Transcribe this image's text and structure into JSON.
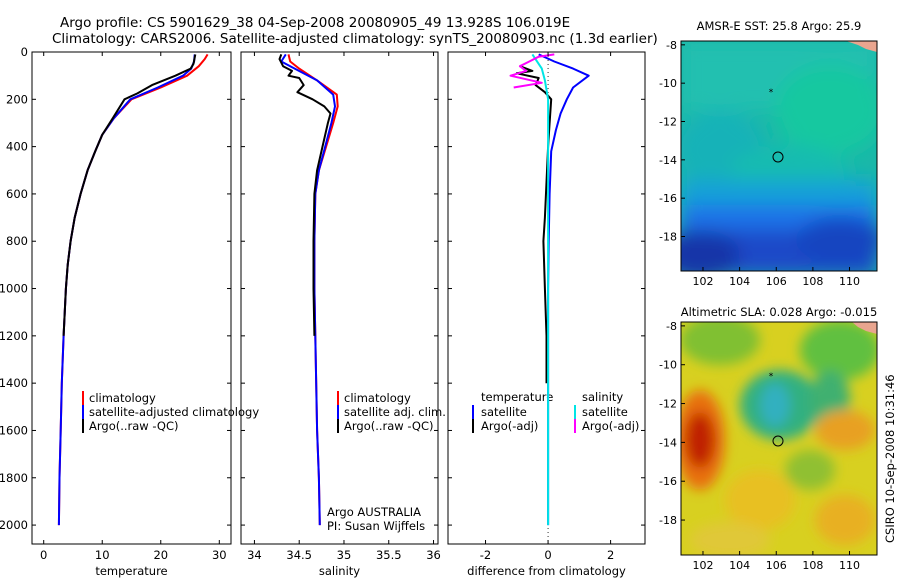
{
  "header": {
    "line1": "Argo profile: CS 5901629_38 04-Sep-2008 20080905_49 13.928S 106.019E",
    "line2": "Climatology: CARS2006. Satellite-adjusted climatology: synTS_20080903.nc (1.3d earlier)"
  },
  "credit": "CSIRO 10-Sep-2008 10:31:46",
  "chart_data": [
    {
      "type": "line",
      "panel": "temperature",
      "xlabel": "temperature",
      "ylabel": "",
      "xlim": [
        -2,
        32
      ],
      "ylim": [
        2080,
        0
      ],
      "xticks": [
        0,
        10,
        20,
        30
      ],
      "yticks": [
        0,
        200,
        400,
        600,
        800,
        1000,
        1200,
        1400,
        1600,
        1800,
        2000
      ],
      "legend": {
        "placement": "lower-right",
        "entries": [
          "climatology",
          "satellite-adjusted climatology",
          "Argo(..raw -QC)"
        ]
      },
      "series": [
        {
          "name": "climatology",
          "color": "#ff0000",
          "points": [
            [
              28,
              10
            ],
            [
              27.5,
              30
            ],
            [
              26.5,
              60
            ],
            [
              24.5,
              100
            ],
            [
              20,
              150
            ],
            [
              15,
              200
            ],
            [
              12,
              280
            ],
            [
              10,
              350
            ],
            [
              8.8,
              420
            ],
            [
              7.5,
              500
            ],
            [
              6.3,
              600
            ],
            [
              5.3,
              700
            ],
            [
              4.6,
              800
            ],
            [
              4.1,
              900
            ],
            [
              3.8,
              1000
            ],
            [
              3.4,
              1200
            ],
            [
              3.1,
              1400
            ],
            [
              2.9,
              1600
            ],
            [
              2.7,
              1800
            ],
            [
              2.6,
              2000
            ]
          ]
        },
        {
          "name": "satellite-adjusted climatology",
          "color": "#0000ff",
          "points": [
            [
              25.8,
              10
            ],
            [
              25.7,
              40
            ],
            [
              25.2,
              70
            ],
            [
              23.8,
              100
            ],
            [
              19.5,
              150
            ],
            [
              14.8,
              200
            ],
            [
              12,
              280
            ],
            [
              10,
              350
            ],
            [
              8.8,
              420
            ],
            [
              7.5,
              500
            ],
            [
              6.3,
              600
            ],
            [
              5.3,
              700
            ],
            [
              4.6,
              800
            ],
            [
              4.1,
              900
            ],
            [
              3.8,
              1000
            ],
            [
              3.4,
              1200
            ],
            [
              3.1,
              1400
            ],
            [
              2.9,
              1600
            ],
            [
              2.7,
              1800
            ],
            [
              2.6,
              2000
            ]
          ]
        },
        {
          "name": "Argo(..raw -QC)",
          "color": "#000000",
          "points": [
            [
              25.9,
              10
            ],
            [
              25.6,
              50
            ],
            [
              25.1,
              70
            ],
            [
              22.5,
              100
            ],
            [
              18.5,
              140
            ],
            [
              16,
              175
            ],
            [
              13.8,
              200
            ],
            [
              11.8,
              280
            ],
            [
              10,
              350
            ],
            [
              8.8,
              420
            ],
            [
              7.5,
              500
            ],
            [
              6.3,
              600
            ],
            [
              5.3,
              700
            ],
            [
              4.6,
              800
            ],
            [
              4.1,
              900
            ],
            [
              3.8,
              1000
            ],
            [
              3.4,
              1200
            ]
          ]
        }
      ]
    },
    {
      "type": "line",
      "panel": "salinity",
      "xlabel": "salinity",
      "xlim": [
        33.85,
        36.05
      ],
      "ylim": [
        2080,
        0
      ],
      "xticks": [
        34,
        34.5,
        35,
        35.5,
        36
      ],
      "legend": {
        "placement": "lower-right",
        "entries": [
          "climatology",
          "satellite adj. clim.",
          "Argo(..raw -QC)"
        ]
      },
      "annotations": [
        "Argo AUSTRALIA",
        "PI: Susan Wijffels"
      ],
      "series": [
        {
          "name": "climatology",
          "color": "#ff0000",
          "points": [
            [
              34.38,
              10
            ],
            [
              34.4,
              40
            ],
            [
              34.5,
              70
            ],
            [
              34.7,
              120
            ],
            [
              34.92,
              180
            ],
            [
              34.93,
              230
            ],
            [
              34.88,
              300
            ],
            [
              34.8,
              400
            ],
            [
              34.72,
              500
            ],
            [
              34.68,
              600
            ],
            [
              34.67,
              800
            ],
            [
              34.67,
              1000
            ],
            [
              34.68,
              1200
            ],
            [
              34.69,
              1400
            ],
            [
              34.7,
              1600
            ],
            [
              34.72,
              1800
            ],
            [
              34.73,
              2000
            ]
          ]
        },
        {
          "name": "satellite adj. clim.",
          "color": "#0000ff",
          "points": [
            [
              34.35,
              10
            ],
            [
              34.3,
              40
            ],
            [
              34.45,
              70
            ],
            [
              34.7,
              120
            ],
            [
              34.88,
              180
            ],
            [
              34.9,
              230
            ],
            [
              34.86,
              300
            ],
            [
              34.79,
              400
            ],
            [
              34.72,
              500
            ],
            [
              34.68,
              600
            ],
            [
              34.67,
              800
            ],
            [
              34.67,
              1000
            ],
            [
              34.68,
              1200
            ],
            [
              34.69,
              1400
            ],
            [
              34.7,
              1600
            ],
            [
              34.72,
              1800
            ],
            [
              34.73,
              2000
            ]
          ]
        },
        {
          "name": "Argo(..raw -QC)",
          "color": "#000000",
          "points": [
            [
              34.3,
              10
            ],
            [
              34.28,
              30
            ],
            [
              34.32,
              60
            ],
            [
              34.42,
              80
            ],
            [
              34.38,
              100
            ],
            [
              34.5,
              110
            ],
            [
              34.55,
              140
            ],
            [
              34.48,
              170
            ],
            [
              34.65,
              200
            ],
            [
              34.78,
              230
            ],
            [
              34.85,
              260
            ],
            [
              34.82,
              300
            ],
            [
              34.76,
              400
            ],
            [
              34.7,
              500
            ],
            [
              34.67,
              600
            ],
            [
              34.66,
              800
            ],
            [
              34.66,
              1000
            ],
            [
              34.67,
              1200
            ]
          ]
        }
      ]
    },
    {
      "type": "line",
      "panel": "difference",
      "xlabel": "difference from climatology",
      "xlim": [
        -3.2,
        3.1
      ],
      "ylim": [
        2080,
        0
      ],
      "xticks": [
        -2,
        0,
        2
      ],
      "legend": {
        "placement": "lower-right",
        "entries": [
          "temperature",
          "satellite",
          "Argo(-adj)",
          "salinity",
          "satellite",
          "Argo(-adj)"
        ]
      },
      "series": [
        {
          "name": "temperature satellite",
          "color": "#0000ff",
          "points": [
            [
              -0.3,
              10
            ],
            [
              0.2,
              40
            ],
            [
              0.8,
              70
            ],
            [
              1.3,
              100
            ],
            [
              0.8,
              150
            ],
            [
              0.6,
              200
            ],
            [
              0.4,
              260
            ],
            [
              0.25,
              330
            ],
            [
              0.1,
              420
            ],
            [
              0.05,
              600
            ],
            [
              0.02,
              800
            ],
            [
              0,
              1000
            ],
            [
              0,
              1200
            ],
            [
              0,
              1600
            ],
            [
              0,
              2000
            ]
          ]
        },
        {
          "name": "temperature Argo(-adj)",
          "color": "#000000",
          "points": [
            [
              -0.9,
              60
            ],
            [
              -0.5,
              80
            ],
            [
              -1.0,
              90
            ],
            [
              -0.3,
              110
            ],
            [
              -0.4,
              140
            ],
            [
              -0.1,
              170
            ],
            [
              0.1,
              200
            ],
            [
              0.05,
              300
            ],
            [
              0,
              400
            ],
            [
              -0.1,
              700
            ],
            [
              -0.15,
              800
            ],
            [
              -0.1,
              1000
            ],
            [
              -0.05,
              1200
            ],
            [
              -0.05,
              1400
            ]
          ]
        },
        {
          "name": "salinity satellite",
          "color": "#00e5e5",
          "points": [
            [
              -0.5,
              10
            ],
            [
              -0.2,
              70
            ],
            [
              -0.1,
              120
            ],
            [
              0,
              200
            ],
            [
              0,
              400
            ],
            [
              0,
              800
            ],
            [
              0,
              1200
            ],
            [
              0,
              1600
            ],
            [
              0,
              2000
            ]
          ]
        },
        {
          "name": "salinity Argo(-adj)",
          "color": "#ff00ff",
          "points": [
            [
              -1.1,
              150
            ],
            [
              -0.2,
              130
            ],
            [
              -1.2,
              100
            ],
            [
              -0.7,
              80
            ],
            [
              -0.9,
              60
            ],
            [
              -0.6,
              40
            ],
            [
              -0.3,
              20
            ],
            [
              0.2,
              10
            ]
          ]
        }
      ]
    },
    {
      "type": "heatmap",
      "panel": "sst-map",
      "title": "AMSR-E SST: 25.8 Argo: 25.9",
      "xlim": [
        100.8,
        111.5
      ],
      "ylim": [
        -19.8,
        -7.8
      ],
      "xticks": [
        102,
        104,
        106,
        108,
        110
      ],
      "yticks": [
        -8,
        -10,
        -12,
        -14,
        -16,
        -18
      ],
      "marker": {
        "float_position": [
          106.02,
          -13.93
        ],
        "symbol": "circle"
      },
      "colormap": "jet"
    },
    {
      "type": "heatmap",
      "panel": "sla-map",
      "title": "Altimetric SLA: 0.028 Argo: -0.015",
      "xlim": [
        100.8,
        111.5
      ],
      "ylim": [
        -19.8,
        -7.8
      ],
      "xticks": [
        102,
        104,
        106,
        108,
        110
      ],
      "yticks": [
        -8,
        -10,
        -12,
        -14,
        -16,
        -18
      ],
      "marker": {
        "float_position": [
          106.02,
          -13.93
        ],
        "symbol": "circle"
      },
      "colormap": "jet"
    }
  ]
}
